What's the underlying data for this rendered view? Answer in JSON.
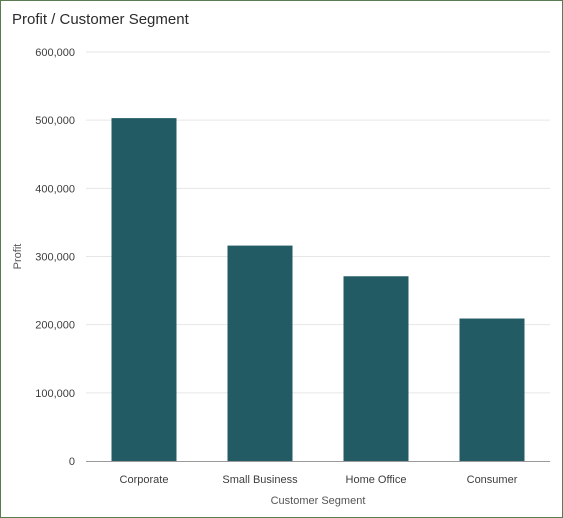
{
  "chart_data": {
    "type": "bar",
    "title": "Profit / Customer Segment",
    "xlabel": "Customer Segment",
    "ylabel": "Profit",
    "categories": [
      "Corporate",
      "Small Business",
      "Home Office",
      "Consumer"
    ],
    "values": [
      503000,
      316000,
      271000,
      209000
    ],
    "ylim": [
      0,
      600000
    ],
    "yticks": [
      0,
      100000,
      200000,
      300000,
      400000,
      500000,
      600000
    ],
    "ytick_labels": [
      "0",
      "100,000",
      "200,000",
      "300,000",
      "400,000",
      "500,000",
      "600,000"
    ],
    "grid": true,
    "legend": "none",
    "colors": {
      "bar": "#225b63",
      "grid": "#e6e6e6",
      "axis": "#9a9a9a"
    }
  }
}
